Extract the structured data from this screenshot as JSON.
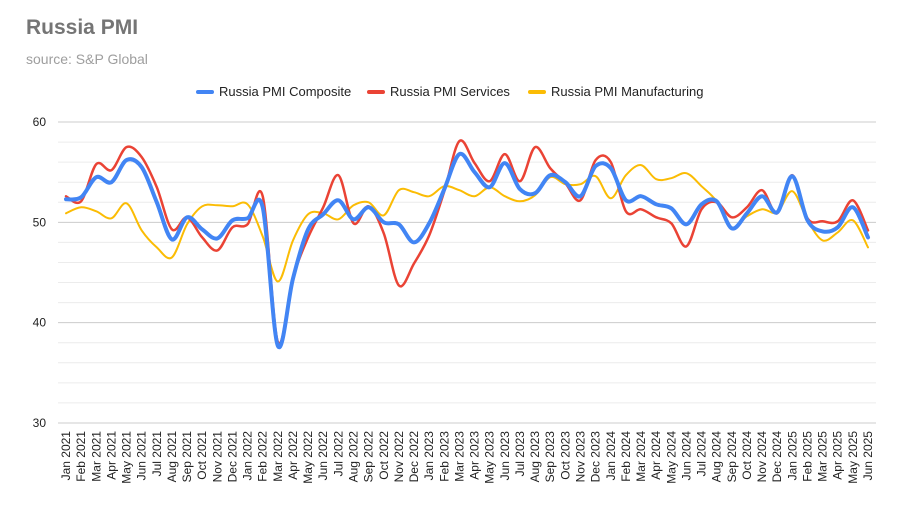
{
  "title": "Russia PMI",
  "subtitle": "source: S&P Global",
  "chart_data": {
    "type": "line",
    "ylim": [
      30,
      60
    ],
    "yticks": [
      30,
      40,
      50,
      60
    ],
    "grid": true,
    "legend_position": "top",
    "categories": [
      "Jan 2021",
      "Feb 2021",
      "Mar 2021",
      "Apr 2021",
      "May 2021",
      "Jun 2021",
      "Jul 2021",
      "Aug 2021",
      "Sep 2021",
      "Oct 2021",
      "Nov 2021",
      "Dec 2021",
      "Jan 2022",
      "Feb 2022",
      "Mar 2022",
      "Apr 2022",
      "May 2022",
      "Jun 2022",
      "Jul 2022",
      "Aug 2022",
      "Sep 2022",
      "Oct 2022",
      "Nov 2022",
      "Dec 2022",
      "Jan 2023",
      "Feb 2023",
      "Mar 2023",
      "Apr 2023",
      "May 2023",
      "Jun 2023",
      "Jul 2023",
      "Aug 2023",
      "Sep 2023",
      "Oct 2023",
      "Nov 2023",
      "Dec 2023",
      "Jan 2024",
      "Feb 2024",
      "Mar 2024",
      "Apr 2024",
      "May 2024",
      "Jun 2024",
      "Jul 2024",
      "Aug 2024",
      "Sep 2024",
      "Oct 2024",
      "Nov 2024",
      "Dec 2024",
      "Jan 2025",
      "Feb 2025",
      "Mar 2025",
      "Apr 2025",
      "May 2025",
      "Jun 2025"
    ],
    "series": [
      {
        "name": "Russia PMI Composite",
        "color": "#4285f4",
        "values": [
          52.3,
          52.5,
          54.5,
          54.0,
          56.2,
          55.5,
          52.0,
          48.3,
          50.5,
          49.3,
          48.4,
          50.2,
          50.4,
          51.5,
          37.7,
          44.4,
          49.3,
          50.8,
          52.2,
          50.3,
          51.5,
          50.0,
          49.8,
          48.0,
          49.9,
          53.3,
          56.8,
          55.0,
          53.5,
          55.9,
          53.3,
          52.9,
          54.7,
          54.0,
          52.6,
          55.6,
          55.4,
          52.2,
          52.6,
          51.8,
          51.4,
          49.8,
          51.8,
          52.1,
          49.4,
          50.9,
          52.6,
          51.0,
          54.6,
          50.2,
          49.1,
          49.5,
          51.5,
          48.5
        ]
      },
      {
        "name": "Russia PMI Services",
        "color": "#ea4335",
        "values": [
          52.6,
          52.1,
          55.8,
          55.2,
          57.5,
          56.5,
          53.5,
          49.3,
          50.5,
          48.5,
          47.2,
          49.5,
          49.8,
          52.6,
          38.1,
          44.5,
          48.5,
          51.5,
          54.7,
          49.9,
          51.6,
          48.9,
          43.7,
          45.9,
          48.7,
          53.1,
          58.1,
          55.9,
          54.1,
          56.8,
          54.1,
          57.5,
          55.4,
          53.9,
          52.2,
          56.2,
          56.0,
          51.1,
          51.3,
          50.5,
          49.9,
          47.6,
          51.3,
          52.0,
          50.5,
          51.5,
          53.2,
          50.9,
          54.7,
          50.4,
          50.1,
          50.1,
          52.2,
          49.2
        ]
      },
      {
        "name": "Russia PMI Manufacturing",
        "color": "#fbbc04",
        "values": [
          50.9,
          51.5,
          51.1,
          50.4,
          51.9,
          49.2,
          47.5,
          46.5,
          49.8,
          51.6,
          51.7,
          51.6,
          51.8,
          48.6,
          44.1,
          48.2,
          50.8,
          50.9,
          50.3,
          51.7,
          52.0,
          50.7,
          53.2,
          53.0,
          52.6,
          53.6,
          53.2,
          52.6,
          53.5,
          52.6,
          52.1,
          52.7,
          54.5,
          53.8,
          53.8,
          54.6,
          52.4,
          54.7,
          55.7,
          54.3,
          54.4,
          54.9,
          53.6,
          52.1,
          49.5,
          50.6,
          51.3,
          51.0,
          53.1,
          50.2,
          48.2,
          49.0,
          50.2,
          47.5
        ]
      }
    ]
  }
}
